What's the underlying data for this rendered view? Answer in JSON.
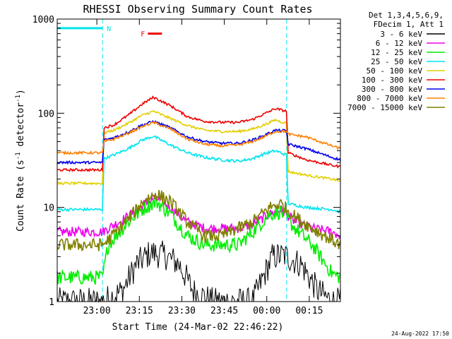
{
  "chart_data": {
    "type": "line",
    "title": "RHESSI Observing Summary Count Rates",
    "xlabel": "Start Time (24-Mar-02 22:46:22)",
    "ylabel": "Count Rate (s^-1 detector^-1)",
    "ylabel_parts": {
      "pre": "Count Rate (s",
      "sup1": "-1",
      "mid": " detector",
      "sup2": "-1",
      "post": ")"
    },
    "yscale": "log",
    "ylim": [
      1,
      1000
    ],
    "xlim_min": [
      0,
      100
    ],
    "x_ticks": [
      {
        "label": "23:00",
        "min": 14
      },
      {
        "label": "23:15",
        "min": 29
      },
      {
        "label": "23:30",
        "min": 44
      },
      {
        "label": "23:45",
        "min": 59
      },
      {
        "label": "00:00",
        "min": 74
      },
      {
        "label": "00:15",
        "min": 89
      }
    ],
    "y_ticks": [
      {
        "label": "1",
        "value": 1
      },
      {
        "label": "10",
        "value": 10
      },
      {
        "label": "100",
        "value": 100
      },
      {
        "label": "1000",
        "value": 1000
      }
    ],
    "legend_header": [
      "Det 1,3,4,5,6,9,",
      "FDecim 1, Att 1"
    ],
    "legend_position": "right",
    "flags": [
      {
        "label": "N",
        "color": "#00e5ee",
        "start": 0,
        "end": 16,
        "value": 800
      },
      {
        "label": "F",
        "color": "#ee0000",
        "start": 32,
        "end": 37,
        "value": 700
      }
    ],
    "night_boundaries_min": [
      16,
      81
    ],
    "series": [
      {
        "name": "3 - 6 keV",
        "color": "#000000",
        "points": [
          [
            0,
            1
          ],
          [
            16,
            1
          ],
          [
            23,
            1.3
          ],
          [
            28,
            2.5
          ],
          [
            33,
            3.3
          ],
          [
            38,
            3.1
          ],
          [
            43,
            2.5
          ],
          [
            48,
            1.3
          ],
          [
            55,
            1
          ],
          [
            69,
            1
          ],
          [
            72,
            1.6
          ],
          [
            76,
            3.0
          ],
          [
            80,
            3.1
          ],
          [
            86,
            2.5
          ],
          [
            92,
            1.3
          ],
          [
            97,
            1
          ],
          [
            100,
            1
          ]
        ]
      },
      {
        "name": "6 - 12 keV",
        "color": "#ee00ee",
        "points": [
          [
            0,
            5.5
          ],
          [
            16,
            5.5
          ],
          [
            18,
            6
          ],
          [
            25,
            8
          ],
          [
            31,
            11
          ],
          [
            35,
            12.5
          ],
          [
            40,
            10
          ],
          [
            46,
            7
          ],
          [
            52,
            6
          ],
          [
            58,
            6
          ],
          [
            64,
            6
          ],
          [
            69,
            6.5
          ],
          [
            75,
            8.5
          ],
          [
            79,
            9.5
          ],
          [
            84,
            7
          ],
          [
            90,
            6
          ],
          [
            97,
            5.5
          ],
          [
            100,
            5
          ]
        ]
      },
      {
        "name": "12 - 25 keV",
        "color": "#00ee00",
        "points": [
          [
            0,
            1.8
          ],
          [
            16,
            1.8
          ],
          [
            18,
            4
          ],
          [
            25,
            7
          ],
          [
            31,
            10
          ],
          [
            35,
            11.5
          ],
          [
            40,
            8.5
          ],
          [
            46,
            5
          ],
          [
            52,
            4
          ],
          [
            58,
            4
          ],
          [
            64,
            4
          ],
          [
            69,
            5.5
          ],
          [
            75,
            8.5
          ],
          [
            79,
            9
          ],
          [
            84,
            6
          ],
          [
            90,
            4
          ],
          [
            97,
            2
          ],
          [
            100,
            1.8
          ]
        ]
      },
      {
        "name": "25 - 50 keV",
        "color": "#00e5ee",
        "points": [
          [
            0,
            9.5
          ],
          [
            16,
            9.5
          ],
          [
            16.5,
            33
          ],
          [
            20,
            36
          ],
          [
            25,
            42
          ],
          [
            30,
            52
          ],
          [
            34,
            57
          ],
          [
            40,
            46
          ],
          [
            46,
            38
          ],
          [
            52,
            34
          ],
          [
            58,
            32
          ],
          [
            64,
            31
          ],
          [
            69,
            33
          ],
          [
            73,
            37
          ],
          [
            77,
            40
          ],
          [
            81,
            36
          ],
          [
            81.5,
            11
          ],
          [
            88,
            10
          ],
          [
            97,
            9.5
          ],
          [
            100,
            9
          ]
        ]
      },
      {
        "name": "50 - 100 keV",
        "color": "#e0d000",
        "points": [
          [
            0,
            18
          ],
          [
            16,
            18
          ],
          [
            16.5,
            62
          ],
          [
            20,
            66
          ],
          [
            25,
            78
          ],
          [
            30,
            95
          ],
          [
            34,
            105
          ],
          [
            40,
            88
          ],
          [
            46,
            74
          ],
          [
            52,
            66
          ],
          [
            58,
            64
          ],
          [
            64,
            64
          ],
          [
            69,
            68
          ],
          [
            73,
            75
          ],
          [
            77,
            85
          ],
          [
            81,
            78
          ],
          [
            81.5,
            24
          ],
          [
            88,
            22
          ],
          [
            97,
            20
          ],
          [
            100,
            19
          ]
        ]
      },
      {
        "name": "100 - 300 keV",
        "color": "#ee0000",
        "points": [
          [
            0,
            25
          ],
          [
            16,
            25
          ],
          [
            16.5,
            70
          ],
          [
            20,
            75
          ],
          [
            25,
            95
          ],
          [
            30,
            125
          ],
          [
            34,
            148
          ],
          [
            40,
            120
          ],
          [
            46,
            92
          ],
          [
            52,
            82
          ],
          [
            58,
            80
          ],
          [
            64,
            80
          ],
          [
            69,
            86
          ],
          [
            73,
            98
          ],
          [
            77,
            112
          ],
          [
            81,
            105
          ],
          [
            81.5,
            38
          ],
          [
            88,
            32
          ],
          [
            97,
            28
          ],
          [
            100,
            27
          ]
        ]
      },
      {
        "name": "300 - 800 keV",
        "color": "#0000ee",
        "points": [
          [
            0,
            30
          ],
          [
            16,
            30
          ],
          [
            16.5,
            52
          ],
          [
            20,
            55
          ],
          [
            25,
            63
          ],
          [
            30,
            75
          ],
          [
            34,
            82
          ],
          [
            40,
            70
          ],
          [
            46,
            56
          ],
          [
            52,
            50
          ],
          [
            58,
            48
          ],
          [
            64,
            48
          ],
          [
            69,
            52
          ],
          [
            73,
            58
          ],
          [
            77,
            66
          ],
          [
            81,
            65
          ],
          [
            81.5,
            47
          ],
          [
            88,
            42
          ],
          [
            97,
            34
          ],
          [
            100,
            32
          ]
        ]
      },
      {
        "name": "800 - 7000 keV",
        "color": "#ff7f00",
        "points": [
          [
            0,
            38
          ],
          [
            16,
            38
          ],
          [
            16.5,
            50
          ],
          [
            20,
            53
          ],
          [
            25,
            61
          ],
          [
            30,
            72
          ],
          [
            34,
            80
          ],
          [
            40,
            68
          ],
          [
            46,
            53
          ],
          [
            52,
            47
          ],
          [
            58,
            45
          ],
          [
            64,
            46
          ],
          [
            69,
            50
          ],
          [
            73,
            56
          ],
          [
            77,
            64
          ],
          [
            81,
            64
          ],
          [
            81.5,
            60
          ],
          [
            88,
            56
          ],
          [
            97,
            45
          ],
          [
            100,
            42
          ]
        ]
      },
      {
        "name": "7000 - 15000 keV",
        "color": "#808000",
        "points": [
          [
            0,
            4
          ],
          [
            16,
            4
          ],
          [
            18,
            4.5
          ],
          [
            25,
            7.5
          ],
          [
            31,
            12
          ],
          [
            35,
            14
          ],
          [
            40,
            11.5
          ],
          [
            46,
            7
          ],
          [
            52,
            5
          ],
          [
            58,
            5
          ],
          [
            64,
            6
          ],
          [
            69,
            7
          ],
          [
            75,
            10
          ],
          [
            79,
            11
          ],
          [
            84,
            8
          ],
          [
            90,
            6
          ],
          [
            97,
            4.5
          ],
          [
            100,
            4
          ]
        ]
      }
    ],
    "grid": false,
    "timestamp": "24-Aug-2022 17:50"
  }
}
